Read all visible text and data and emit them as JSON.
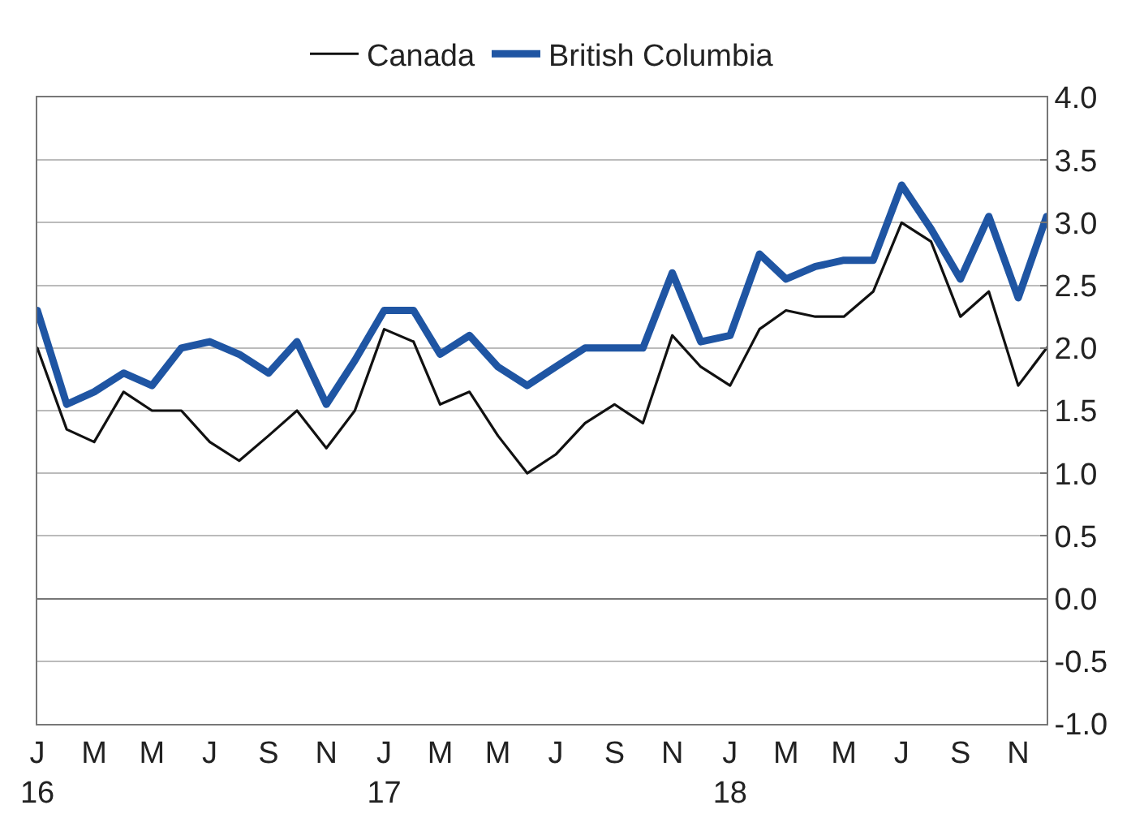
{
  "chart_data": {
    "type": "line",
    "x": [
      "2016-01",
      "2016-02",
      "2016-03",
      "2016-04",
      "2016-05",
      "2016-06",
      "2016-07",
      "2016-08",
      "2016-09",
      "2016-10",
      "2016-11",
      "2016-12",
      "2017-01",
      "2017-02",
      "2017-03",
      "2017-04",
      "2017-05",
      "2017-06",
      "2017-07",
      "2017-08",
      "2017-09",
      "2017-10",
      "2017-11",
      "2017-12",
      "2018-01",
      "2018-02",
      "2018-03",
      "2018-04",
      "2018-05",
      "2018-06",
      "2018-07",
      "2018-08",
      "2018-09",
      "2018-10",
      "2018-11",
      "2018-12"
    ],
    "series": [
      {
        "name": "Canada",
        "color": "#111111",
        "values": [
          2.0,
          1.35,
          1.25,
          1.65,
          1.5,
          1.5,
          1.25,
          1.1,
          1.3,
          1.5,
          1.2,
          1.5,
          2.15,
          2.05,
          1.55,
          1.65,
          1.3,
          1.0,
          1.15,
          1.4,
          1.55,
          1.4,
          2.1,
          1.85,
          1.7,
          2.15,
          2.3,
          2.25,
          2.25,
          2.45,
          3.0,
          2.85,
          2.25,
          2.45,
          1.7,
          2.0
        ]
      },
      {
        "name": "British Columbia",
        "color": "#1f55a3",
        "values": [
          2.3,
          1.55,
          1.65,
          1.8,
          1.7,
          2.0,
          2.05,
          1.95,
          1.8,
          2.05,
          1.55,
          1.9,
          2.3,
          2.3,
          1.95,
          2.1,
          1.85,
          1.7,
          1.85,
          2.0,
          2.0,
          2.0,
          2.6,
          2.05,
          2.1,
          2.75,
          2.55,
          2.65,
          2.7,
          2.7,
          3.3,
          2.95,
          2.55,
          3.05,
          2.4,
          3.05
        ]
      }
    ],
    "xlim": [
      "2016-01",
      "2018-12"
    ],
    "xticks": [
      {
        "value": "2016-01",
        "label": "J\n16"
      },
      {
        "value": "2016-03",
        "label": "M"
      },
      {
        "value": "2016-05",
        "label": "M"
      },
      {
        "value": "2016-07",
        "label": "J"
      },
      {
        "value": "2016-09",
        "label": "S"
      },
      {
        "value": "2016-11",
        "label": "N"
      },
      {
        "value": "2017-01",
        "label": "J\n17"
      },
      {
        "value": "2017-03",
        "label": "M"
      },
      {
        "value": "2017-05",
        "label": "M"
      },
      {
        "value": "2017-07",
        "label": "J"
      },
      {
        "value": "2017-09",
        "label": "S"
      },
      {
        "value": "2017-11",
        "label": "N"
      },
      {
        "value": "2018-01",
        "label": "J\n18"
      },
      {
        "value": "2018-03",
        "label": "M"
      },
      {
        "value": "2018-05",
        "label": "M"
      },
      {
        "value": "2018-07",
        "label": "J"
      },
      {
        "value": "2018-09",
        "label": "S"
      },
      {
        "value": "2018-11",
        "label": "N"
      }
    ],
    "ylim": [
      -1.0,
      4.0
    ],
    "yticks": [
      {
        "value": -1,
        "label": "-1.0"
      },
      {
        "value": -0.5,
        "label": "-0.5"
      },
      {
        "value": 0,
        "label": "0.0"
      },
      {
        "value": 0.5,
        "label": "0.5"
      },
      {
        "value": 1,
        "label": "1.0"
      },
      {
        "value": 1.5,
        "label": "1.5"
      },
      {
        "value": 2,
        "label": "2.0"
      },
      {
        "value": 2.5,
        "label": "2.5"
      },
      {
        "value": 3,
        "label": "3.0"
      },
      {
        "value": 3.5,
        "label": "3.5"
      },
      {
        "value": 4,
        "label": "4.0"
      }
    ],
    "grid": "y",
    "legend": "top",
    "marker": "none",
    "line_style": "solid"
  }
}
